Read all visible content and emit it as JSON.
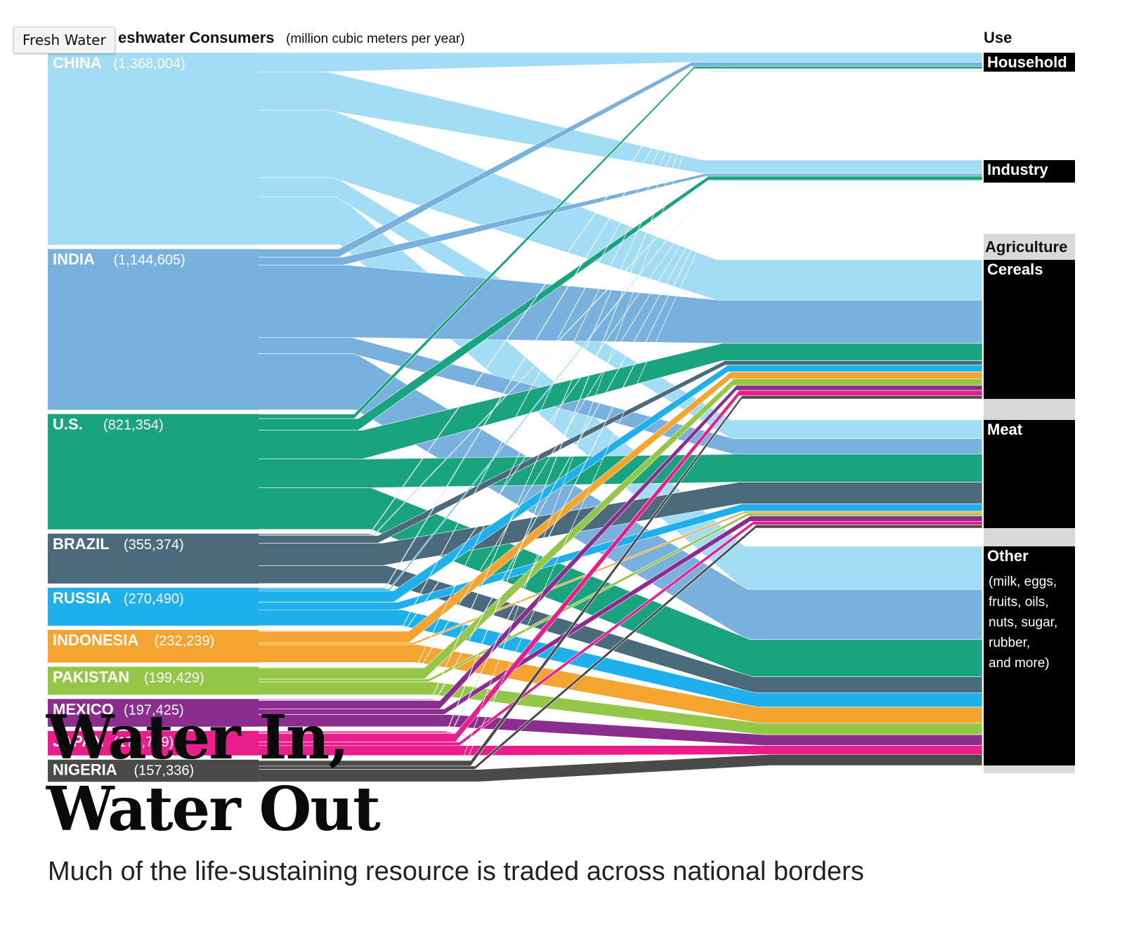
{
  "tooltip": {
    "label": "Fresh Water"
  },
  "header": {
    "consumers_title": "eshwater Consumers",
    "consumers_unit": "(million cubic meters per year)",
    "use_title": "Use"
  },
  "title_line1": "Water In,",
  "title_line2": "Water Out",
  "subtitle": "Much of the life-sustaining resource is traded across national borders",
  "chart_data": {
    "type": "sankey",
    "units": "million cubic meters per year",
    "sources": [
      {
        "name": "CHINA",
        "value": 1368004,
        "value_label": "(1,368,004)",
        "color": "#a3dcf5"
      },
      {
        "name": "INDIA",
        "value": 1144605,
        "value_label": "(1,144,605)",
        "color": "#78b0de"
      },
      {
        "name": "U.S.",
        "value": 821354,
        "value_label": "(821,354)",
        "color": "#1aa37f"
      },
      {
        "name": "BRAZIL",
        "value": 355374,
        "value_label": "(355,374)",
        "color": "#4b6b7c"
      },
      {
        "name": "RUSSIA",
        "value": 270490,
        "value_label": "(270,490)",
        "color": "#1eb0ec"
      },
      {
        "name": "INDONESIA",
        "value": 232239,
        "value_label": "(232,239)",
        "color": "#f5a42f"
      },
      {
        "name": "PAKISTAN",
        "value": 199429,
        "value_label": "(199,429)",
        "color": "#94c748"
      },
      {
        "name": "MEXICO",
        "value": 197425,
        "value_label": "(197,425)",
        "color": "#8a2d8e"
      },
      {
        "name": "JAPAN",
        "value": 174779,
        "value_label": "(174,779)",
        "color": "#e91e8c"
      },
      {
        "name": "NIGERIA",
        "value": 157336,
        "value_label": "(157,336)",
        "color": "#4a4a4a"
      }
    ],
    "uses": [
      {
        "name": "Household"
      },
      {
        "name": "Industry"
      },
      {
        "name": "Agriculture",
        "group": true
      },
      {
        "name": "Cereals"
      },
      {
        "name": "Meat"
      },
      {
        "name": "Other",
        "note_lines": [
          "(milk, eggs,",
          "fruits, oils,",
          "nuts, sugar,",
          "rubber,",
          "and more)"
        ]
      }
    ],
    "colors": {
      "use_bar": "#000000",
      "agriculture_band": "#d9d9d9",
      "text_on_dark": "#ffffff"
    }
  }
}
